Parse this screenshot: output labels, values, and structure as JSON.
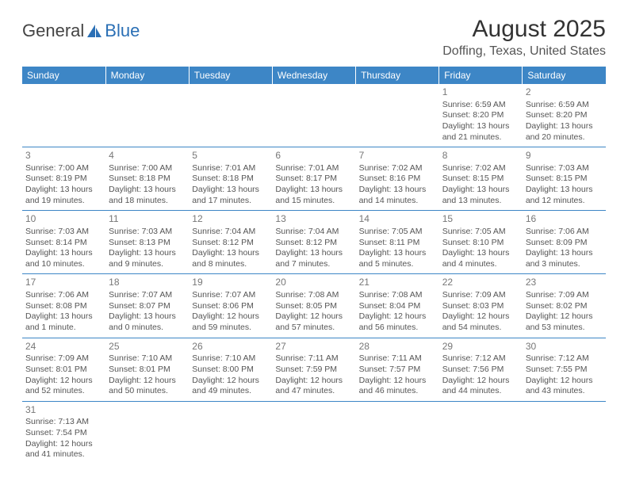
{
  "logo": {
    "text1": "General",
    "text2": "Blue"
  },
  "title": "August 2025",
  "location": "Doffing, Texas, United States",
  "columns": [
    "Sunday",
    "Monday",
    "Tuesday",
    "Wednesday",
    "Thursday",
    "Friday",
    "Saturday"
  ],
  "days": [
    {
      "n": 1,
      "sr": "6:59 AM",
      "ss": "8:20 PM",
      "dl": "13 hours and 21 minutes."
    },
    {
      "n": 2,
      "sr": "6:59 AM",
      "ss": "8:20 PM",
      "dl": "13 hours and 20 minutes."
    },
    {
      "n": 3,
      "sr": "7:00 AM",
      "ss": "8:19 PM",
      "dl": "13 hours and 19 minutes."
    },
    {
      "n": 4,
      "sr": "7:00 AM",
      "ss": "8:18 PM",
      "dl": "13 hours and 18 minutes."
    },
    {
      "n": 5,
      "sr": "7:01 AM",
      "ss": "8:18 PM",
      "dl": "13 hours and 17 minutes."
    },
    {
      "n": 6,
      "sr": "7:01 AM",
      "ss": "8:17 PM",
      "dl": "13 hours and 15 minutes."
    },
    {
      "n": 7,
      "sr": "7:02 AM",
      "ss": "8:16 PM",
      "dl": "13 hours and 14 minutes."
    },
    {
      "n": 8,
      "sr": "7:02 AM",
      "ss": "8:15 PM",
      "dl": "13 hours and 13 minutes."
    },
    {
      "n": 9,
      "sr": "7:03 AM",
      "ss": "8:15 PM",
      "dl": "13 hours and 12 minutes."
    },
    {
      "n": 10,
      "sr": "7:03 AM",
      "ss": "8:14 PM",
      "dl": "13 hours and 10 minutes."
    },
    {
      "n": 11,
      "sr": "7:03 AM",
      "ss": "8:13 PM",
      "dl": "13 hours and 9 minutes."
    },
    {
      "n": 12,
      "sr": "7:04 AM",
      "ss": "8:12 PM",
      "dl": "13 hours and 8 minutes."
    },
    {
      "n": 13,
      "sr": "7:04 AM",
      "ss": "8:12 PM",
      "dl": "13 hours and 7 minutes."
    },
    {
      "n": 14,
      "sr": "7:05 AM",
      "ss": "8:11 PM",
      "dl": "13 hours and 5 minutes."
    },
    {
      "n": 15,
      "sr": "7:05 AM",
      "ss": "8:10 PM",
      "dl": "13 hours and 4 minutes."
    },
    {
      "n": 16,
      "sr": "7:06 AM",
      "ss": "8:09 PM",
      "dl": "13 hours and 3 minutes."
    },
    {
      "n": 17,
      "sr": "7:06 AM",
      "ss": "8:08 PM",
      "dl": "13 hours and 1 minute."
    },
    {
      "n": 18,
      "sr": "7:07 AM",
      "ss": "8:07 PM",
      "dl": "13 hours and 0 minutes."
    },
    {
      "n": 19,
      "sr": "7:07 AM",
      "ss": "8:06 PM",
      "dl": "12 hours and 59 minutes."
    },
    {
      "n": 20,
      "sr": "7:08 AM",
      "ss": "8:05 PM",
      "dl": "12 hours and 57 minutes."
    },
    {
      "n": 21,
      "sr": "7:08 AM",
      "ss": "8:04 PM",
      "dl": "12 hours and 56 minutes."
    },
    {
      "n": 22,
      "sr": "7:09 AM",
      "ss": "8:03 PM",
      "dl": "12 hours and 54 minutes."
    },
    {
      "n": 23,
      "sr": "7:09 AM",
      "ss": "8:02 PM",
      "dl": "12 hours and 53 minutes."
    },
    {
      "n": 24,
      "sr": "7:09 AM",
      "ss": "8:01 PM",
      "dl": "12 hours and 52 minutes."
    },
    {
      "n": 25,
      "sr": "7:10 AM",
      "ss": "8:01 PM",
      "dl": "12 hours and 50 minutes."
    },
    {
      "n": 26,
      "sr": "7:10 AM",
      "ss": "8:00 PM",
      "dl": "12 hours and 49 minutes."
    },
    {
      "n": 27,
      "sr": "7:11 AM",
      "ss": "7:59 PM",
      "dl": "12 hours and 47 minutes."
    },
    {
      "n": 28,
      "sr": "7:11 AM",
      "ss": "7:57 PM",
      "dl": "12 hours and 46 minutes."
    },
    {
      "n": 29,
      "sr": "7:12 AM",
      "ss": "7:56 PM",
      "dl": "12 hours and 44 minutes."
    },
    {
      "n": 30,
      "sr": "7:12 AM",
      "ss": "7:55 PM",
      "dl": "12 hours and 43 minutes."
    },
    {
      "n": 31,
      "sr": "7:13 AM",
      "ss": "7:54 PM",
      "dl": "12 hours and 41 minutes."
    }
  ],
  "labels": {
    "sunrise": "Sunrise: ",
    "sunset": "Sunset: ",
    "daylight": "Daylight: "
  },
  "firstDayOffset": 5,
  "colors": {
    "header_bg": "#3d86c6",
    "header_fg": "#ffffff",
    "border": "#3d86c6",
    "text": "#555555",
    "daynum": "#777777"
  }
}
